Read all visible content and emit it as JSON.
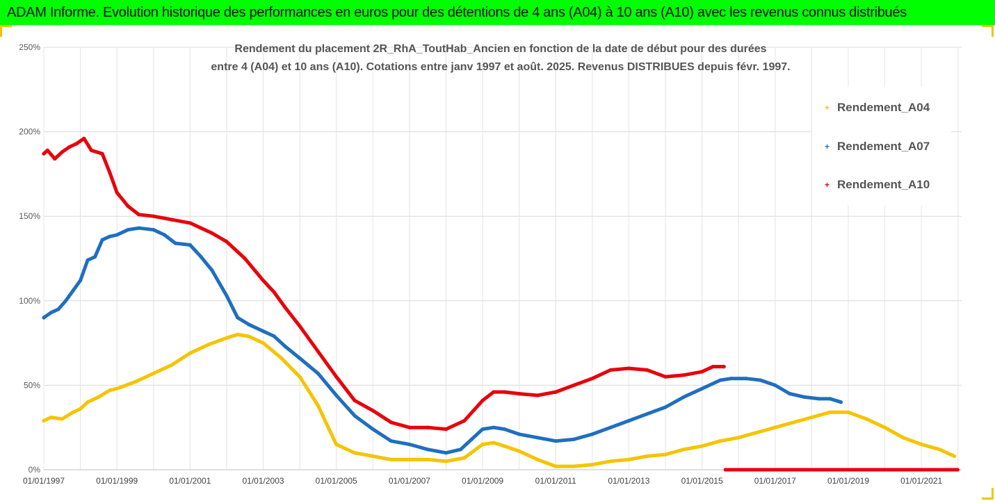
{
  "banner": {
    "title": "ADAM Informe. Evolution historique des performances en euros pour des détentions de 4 ans (A04) à 10 ans (A10) avec les revenus connus distribués"
  },
  "chart_data": {
    "type": "line",
    "title": "Rendement du placement 2R_RhA_ToutHab_Ancien en fonction de la date de début pour des durées",
    "subtitle": "entre 4 (A04) et 10 ans (A10). Cotations entre janv 1997 et août. 2025. Revenus DISTRIBUES depuis févr. 1997.",
    "xlabel": "",
    "ylabel": "",
    "x_ticks": [
      "01/01/1997",
      "01/01/1999",
      "01/01/2001",
      "01/01/2003",
      "01/01/2005",
      "01/01/2007",
      "01/01/2009",
      "01/01/2011",
      "01/01/2013",
      "01/01/2015",
      "01/01/2017",
      "01/01/2019",
      "01/01/2021"
    ],
    "xlim": [
      1997,
      2022.1
    ],
    "y_ticks": [
      "0%",
      "50%",
      "100%",
      "150%",
      "200%",
      "250%"
    ],
    "ylim": [
      0,
      2.5
    ],
    "grid": true,
    "legend_position": "top-right",
    "series": [
      {
        "name": "Rendement_A04",
        "color": "#f5c400",
        "points": [
          [
            1997.0,
            0.29
          ],
          [
            1997.2,
            0.31
          ],
          [
            1997.5,
            0.3
          ],
          [
            1997.8,
            0.34
          ],
          [
            1998.0,
            0.36
          ],
          [
            1998.2,
            0.4
          ],
          [
            1998.5,
            0.43
          ],
          [
            1998.8,
            0.47
          ],
          [
            1999.0,
            0.48
          ],
          [
            1999.5,
            0.52
          ],
          [
            2000.0,
            0.57
          ],
          [
            2000.5,
            0.62
          ],
          [
            2001.0,
            0.69
          ],
          [
            2001.5,
            0.74
          ],
          [
            2002.0,
            0.78
          ],
          [
            2002.3,
            0.8
          ],
          [
            2002.6,
            0.79
          ],
          [
            2003.0,
            0.75
          ],
          [
            2003.5,
            0.66
          ],
          [
            2004.0,
            0.55
          ],
          [
            2004.5,
            0.38
          ],
          [
            2004.8,
            0.24
          ],
          [
            2005.0,
            0.15
          ],
          [
            2005.5,
            0.1
          ],
          [
            2006.0,
            0.08
          ],
          [
            2006.5,
            0.06
          ],
          [
            2007.0,
            0.06
          ],
          [
            2007.5,
            0.06
          ],
          [
            2008.0,
            0.05
          ],
          [
            2008.5,
            0.07
          ],
          [
            2009.0,
            0.15
          ],
          [
            2009.3,
            0.16
          ],
          [
            2009.6,
            0.14
          ],
          [
            2010.0,
            0.11
          ],
          [
            2010.5,
            0.06
          ],
          [
            2011.0,
            0.02
          ],
          [
            2011.5,
            0.02
          ],
          [
            2012.0,
            0.03
          ],
          [
            2012.5,
            0.05
          ],
          [
            2013.0,
            0.06
          ],
          [
            2013.5,
            0.08
          ],
          [
            2014.0,
            0.09
          ],
          [
            2014.5,
            0.12
          ],
          [
            2015.0,
            0.14
          ],
          [
            2015.5,
            0.17
          ],
          [
            2016.0,
            0.19
          ],
          [
            2016.5,
            0.22
          ],
          [
            2017.0,
            0.25
          ],
          [
            2017.5,
            0.28
          ],
          [
            2018.0,
            0.31
          ],
          [
            2018.5,
            0.34
          ],
          [
            2019.0,
            0.34
          ],
          [
            2019.5,
            0.3
          ],
          [
            2020.0,
            0.25
          ],
          [
            2020.5,
            0.19
          ],
          [
            2021.0,
            0.15
          ],
          [
            2021.5,
            0.12
          ],
          [
            2021.9,
            0.08
          ]
        ]
      },
      {
        "name": "Rendement_A07",
        "color": "#1f6fc0",
        "points": [
          [
            1997.0,
            0.9
          ],
          [
            1997.2,
            0.93
          ],
          [
            1997.4,
            0.95
          ],
          [
            1997.6,
            1.0
          ],
          [
            1997.8,
            1.06
          ],
          [
            1998.0,
            1.12
          ],
          [
            1998.2,
            1.24
          ],
          [
            1998.4,
            1.26
          ],
          [
            1998.6,
            1.36
          ],
          [
            1998.8,
            1.38
          ],
          [
            1999.0,
            1.39
          ],
          [
            1999.3,
            1.42
          ],
          [
            1999.6,
            1.43
          ],
          [
            2000.0,
            1.42
          ],
          [
            2000.3,
            1.39
          ],
          [
            2000.6,
            1.34
          ],
          [
            2001.0,
            1.33
          ],
          [
            2001.3,
            1.26
          ],
          [
            2001.6,
            1.18
          ],
          [
            2002.0,
            1.03
          ],
          [
            2002.3,
            0.9
          ],
          [
            2002.6,
            0.86
          ],
          [
            2003.0,
            0.82
          ],
          [
            2003.3,
            0.79
          ],
          [
            2003.6,
            0.73
          ],
          [
            2004.0,
            0.66
          ],
          [
            2004.5,
            0.57
          ],
          [
            2005.0,
            0.44
          ],
          [
            2005.5,
            0.32
          ],
          [
            2006.0,
            0.24
          ],
          [
            2006.5,
            0.17
          ],
          [
            2007.0,
            0.15
          ],
          [
            2007.5,
            0.12
          ],
          [
            2008.0,
            0.1
          ],
          [
            2008.4,
            0.12
          ],
          [
            2008.7,
            0.18
          ],
          [
            2009.0,
            0.24
          ],
          [
            2009.3,
            0.25
          ],
          [
            2009.6,
            0.24
          ],
          [
            2010.0,
            0.21
          ],
          [
            2010.5,
            0.19
          ],
          [
            2011.0,
            0.17
          ],
          [
            2011.5,
            0.18
          ],
          [
            2012.0,
            0.21
          ],
          [
            2012.5,
            0.25
          ],
          [
            2013.0,
            0.29
          ],
          [
            2013.5,
            0.33
          ],
          [
            2014.0,
            0.37
          ],
          [
            2014.5,
            0.43
          ],
          [
            2015.0,
            0.48
          ],
          [
            2015.5,
            0.53
          ],
          [
            2015.8,
            0.54
          ],
          [
            2016.2,
            0.54
          ],
          [
            2016.6,
            0.53
          ],
          [
            2017.0,
            0.5
          ],
          [
            2017.4,
            0.45
          ],
          [
            2017.8,
            0.43
          ],
          [
            2018.2,
            0.42
          ],
          [
            2018.5,
            0.42
          ],
          [
            2018.8,
            0.4
          ]
        ]
      },
      {
        "name": "Rendement_A10",
        "color": "#e8000b",
        "points": [
          [
            1997.0,
            1.87
          ],
          [
            1997.1,
            1.89
          ],
          [
            1997.3,
            1.84
          ],
          [
            1997.5,
            1.88
          ],
          [
            1997.7,
            1.91
          ],
          [
            1997.9,
            1.93
          ],
          [
            1998.1,
            1.96
          ],
          [
            1998.3,
            1.89
          ],
          [
            1998.6,
            1.87
          ],
          [
            1998.8,
            1.76
          ],
          [
            1999.0,
            1.64
          ],
          [
            1999.3,
            1.56
          ],
          [
            1999.6,
            1.51
          ],
          [
            2000.0,
            1.5
          ],
          [
            2000.5,
            1.48
          ],
          [
            2001.0,
            1.46
          ],
          [
            2001.3,
            1.43
          ],
          [
            2001.6,
            1.4
          ],
          [
            2002.0,
            1.35
          ],
          [
            2002.5,
            1.25
          ],
          [
            2003.0,
            1.12
          ],
          [
            2003.3,
            1.05
          ],
          [
            2003.6,
            0.96
          ],
          [
            2004.0,
            0.85
          ],
          [
            2004.5,
            0.7
          ],
          [
            2005.0,
            0.55
          ],
          [
            2005.5,
            0.41
          ],
          [
            2006.0,
            0.35
          ],
          [
            2006.5,
            0.28
          ],
          [
            2007.0,
            0.25
          ],
          [
            2007.5,
            0.25
          ],
          [
            2008.0,
            0.24
          ],
          [
            2008.5,
            0.29
          ],
          [
            2009.0,
            0.41
          ],
          [
            2009.3,
            0.46
          ],
          [
            2009.6,
            0.46
          ],
          [
            2010.0,
            0.45
          ],
          [
            2010.5,
            0.44
          ],
          [
            2011.0,
            0.46
          ],
          [
            2011.5,
            0.5
          ],
          [
            2012.0,
            0.54
          ],
          [
            2012.5,
            0.59
          ],
          [
            2013.0,
            0.6
          ],
          [
            2013.5,
            0.59
          ],
          [
            2014.0,
            0.55
          ],
          [
            2014.5,
            0.56
          ],
          [
            2015.0,
            0.58
          ],
          [
            2015.3,
            0.61
          ],
          [
            2015.6,
            0.61
          ],
          [
            2015.64,
            0.0
          ],
          [
            2021.99,
            0.0
          ]
        ]
      }
    ]
  }
}
